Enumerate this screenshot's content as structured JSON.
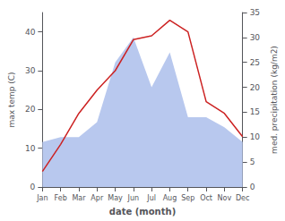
{
  "chart_data": {
    "type": "line",
    "xlabel": "date (month)",
    "ylabel": "max temp (C)",
    "y2label": "med. precipitation (kg/m2)",
    "categories": [
      "Jan",
      "Feb",
      "Mar",
      "Apr",
      "May",
      "Jun",
      "Jul",
      "Aug",
      "Sep",
      "Oct",
      "Nov",
      "Dec"
    ],
    "series": [
      {
        "type": "area",
        "axis": "y2",
        "color": "#b8c8ee",
        "values": [
          9,
          10,
          10,
          13,
          25,
          30,
          20,
          27,
          14,
          14,
          12,
          9
        ]
      },
      {
        "type": "line",
        "axis": "y",
        "color": "#cc2222",
        "values": [
          4,
          11,
          19,
          25,
          30,
          38,
          39,
          43,
          40,
          22,
          19,
          13
        ]
      }
    ],
    "ylim": [
      0,
      45
    ],
    "yticks": [
      0,
      10,
      20,
      30,
      40
    ],
    "y2lim": [
      0,
      35
    ],
    "y2ticks": [
      0,
      5,
      10,
      15,
      20,
      25,
      30,
      35
    ],
    "grid": false
  }
}
